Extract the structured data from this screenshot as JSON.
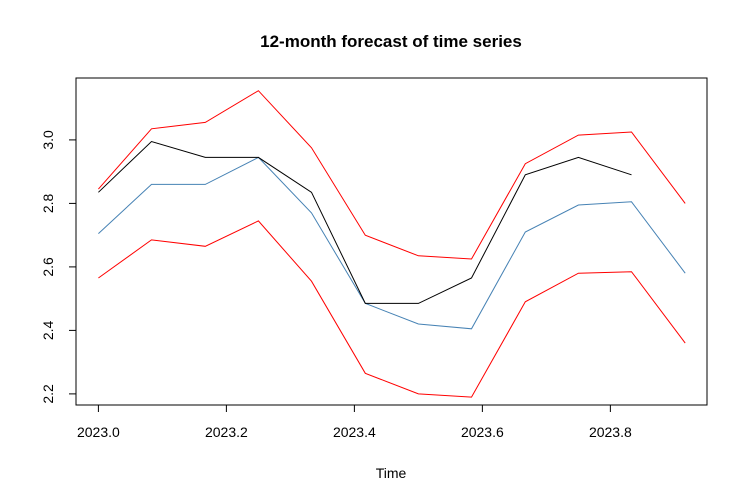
{
  "chart_data": {
    "type": "line",
    "title": "12-month forecast of time series",
    "xlabel": "Time",
    "ylabel": "",
    "xlim": [
      2022.965,
      2023.951
    ],
    "ylim": [
      2.165,
      3.195
    ],
    "x_ticks": [
      2023.0,
      2023.2,
      2023.4,
      2023.6,
      2023.8
    ],
    "x_tick_labels": [
      "2023.0",
      "2023.2",
      "2023.4",
      "2023.6",
      "2023.8"
    ],
    "y_ticks": [
      2.2,
      2.4,
      2.6,
      2.8,
      3.0
    ],
    "y_tick_labels": [
      "2.2",
      "2.4",
      "2.6",
      "2.8",
      "3.0"
    ],
    "grid": false,
    "series": [
      {
        "color": "#ff0000",
        "x": [
          2023.0,
          2023.083,
          2023.167,
          2023.25,
          2023.333,
          2023.417,
          2023.5,
          2023.583,
          2023.667,
          2023.75,
          2023.833,
          2023.917
        ],
        "values": [
          2.845,
          3.035,
          3.055,
          3.155,
          2.975,
          2.7,
          2.635,
          2.625,
          2.925,
          3.015,
          3.025,
          2.8
        ]
      },
      {
        "color": "#4682b4",
        "x": [
          2023.0,
          2023.083,
          2023.167,
          2023.25,
          2023.333,
          2023.417,
          2023.5,
          2023.583,
          2023.667,
          2023.75,
          2023.833,
          2023.917
        ],
        "values": [
          2.705,
          2.86,
          2.86,
          2.945,
          2.77,
          2.485,
          2.42,
          2.405,
          2.71,
          2.795,
          2.805,
          2.58
        ]
      },
      {
        "color": "#ff0000",
        "x": [
          2023.0,
          2023.083,
          2023.167,
          2023.25,
          2023.333,
          2023.417,
          2023.5,
          2023.583,
          2023.667,
          2023.75,
          2023.833,
          2023.917
        ],
        "values": [
          2.565,
          2.685,
          2.665,
          2.745,
          2.555,
          2.265,
          2.2,
          2.19,
          2.49,
          2.58,
          2.585,
          2.36
        ]
      },
      {
        "color": "#000000",
        "x": [
          2023.0,
          2023.083,
          2023.167,
          2023.25,
          2023.333,
          2023.417,
          2023.5,
          2023.583,
          2023.667,
          2023.75,
          2023.833
        ],
        "values": [
          2.835,
          2.995,
          2.945,
          2.945,
          2.835,
          2.485,
          2.485,
          2.565,
          2.89,
          2.945,
          2.89
        ]
      }
    ]
  }
}
